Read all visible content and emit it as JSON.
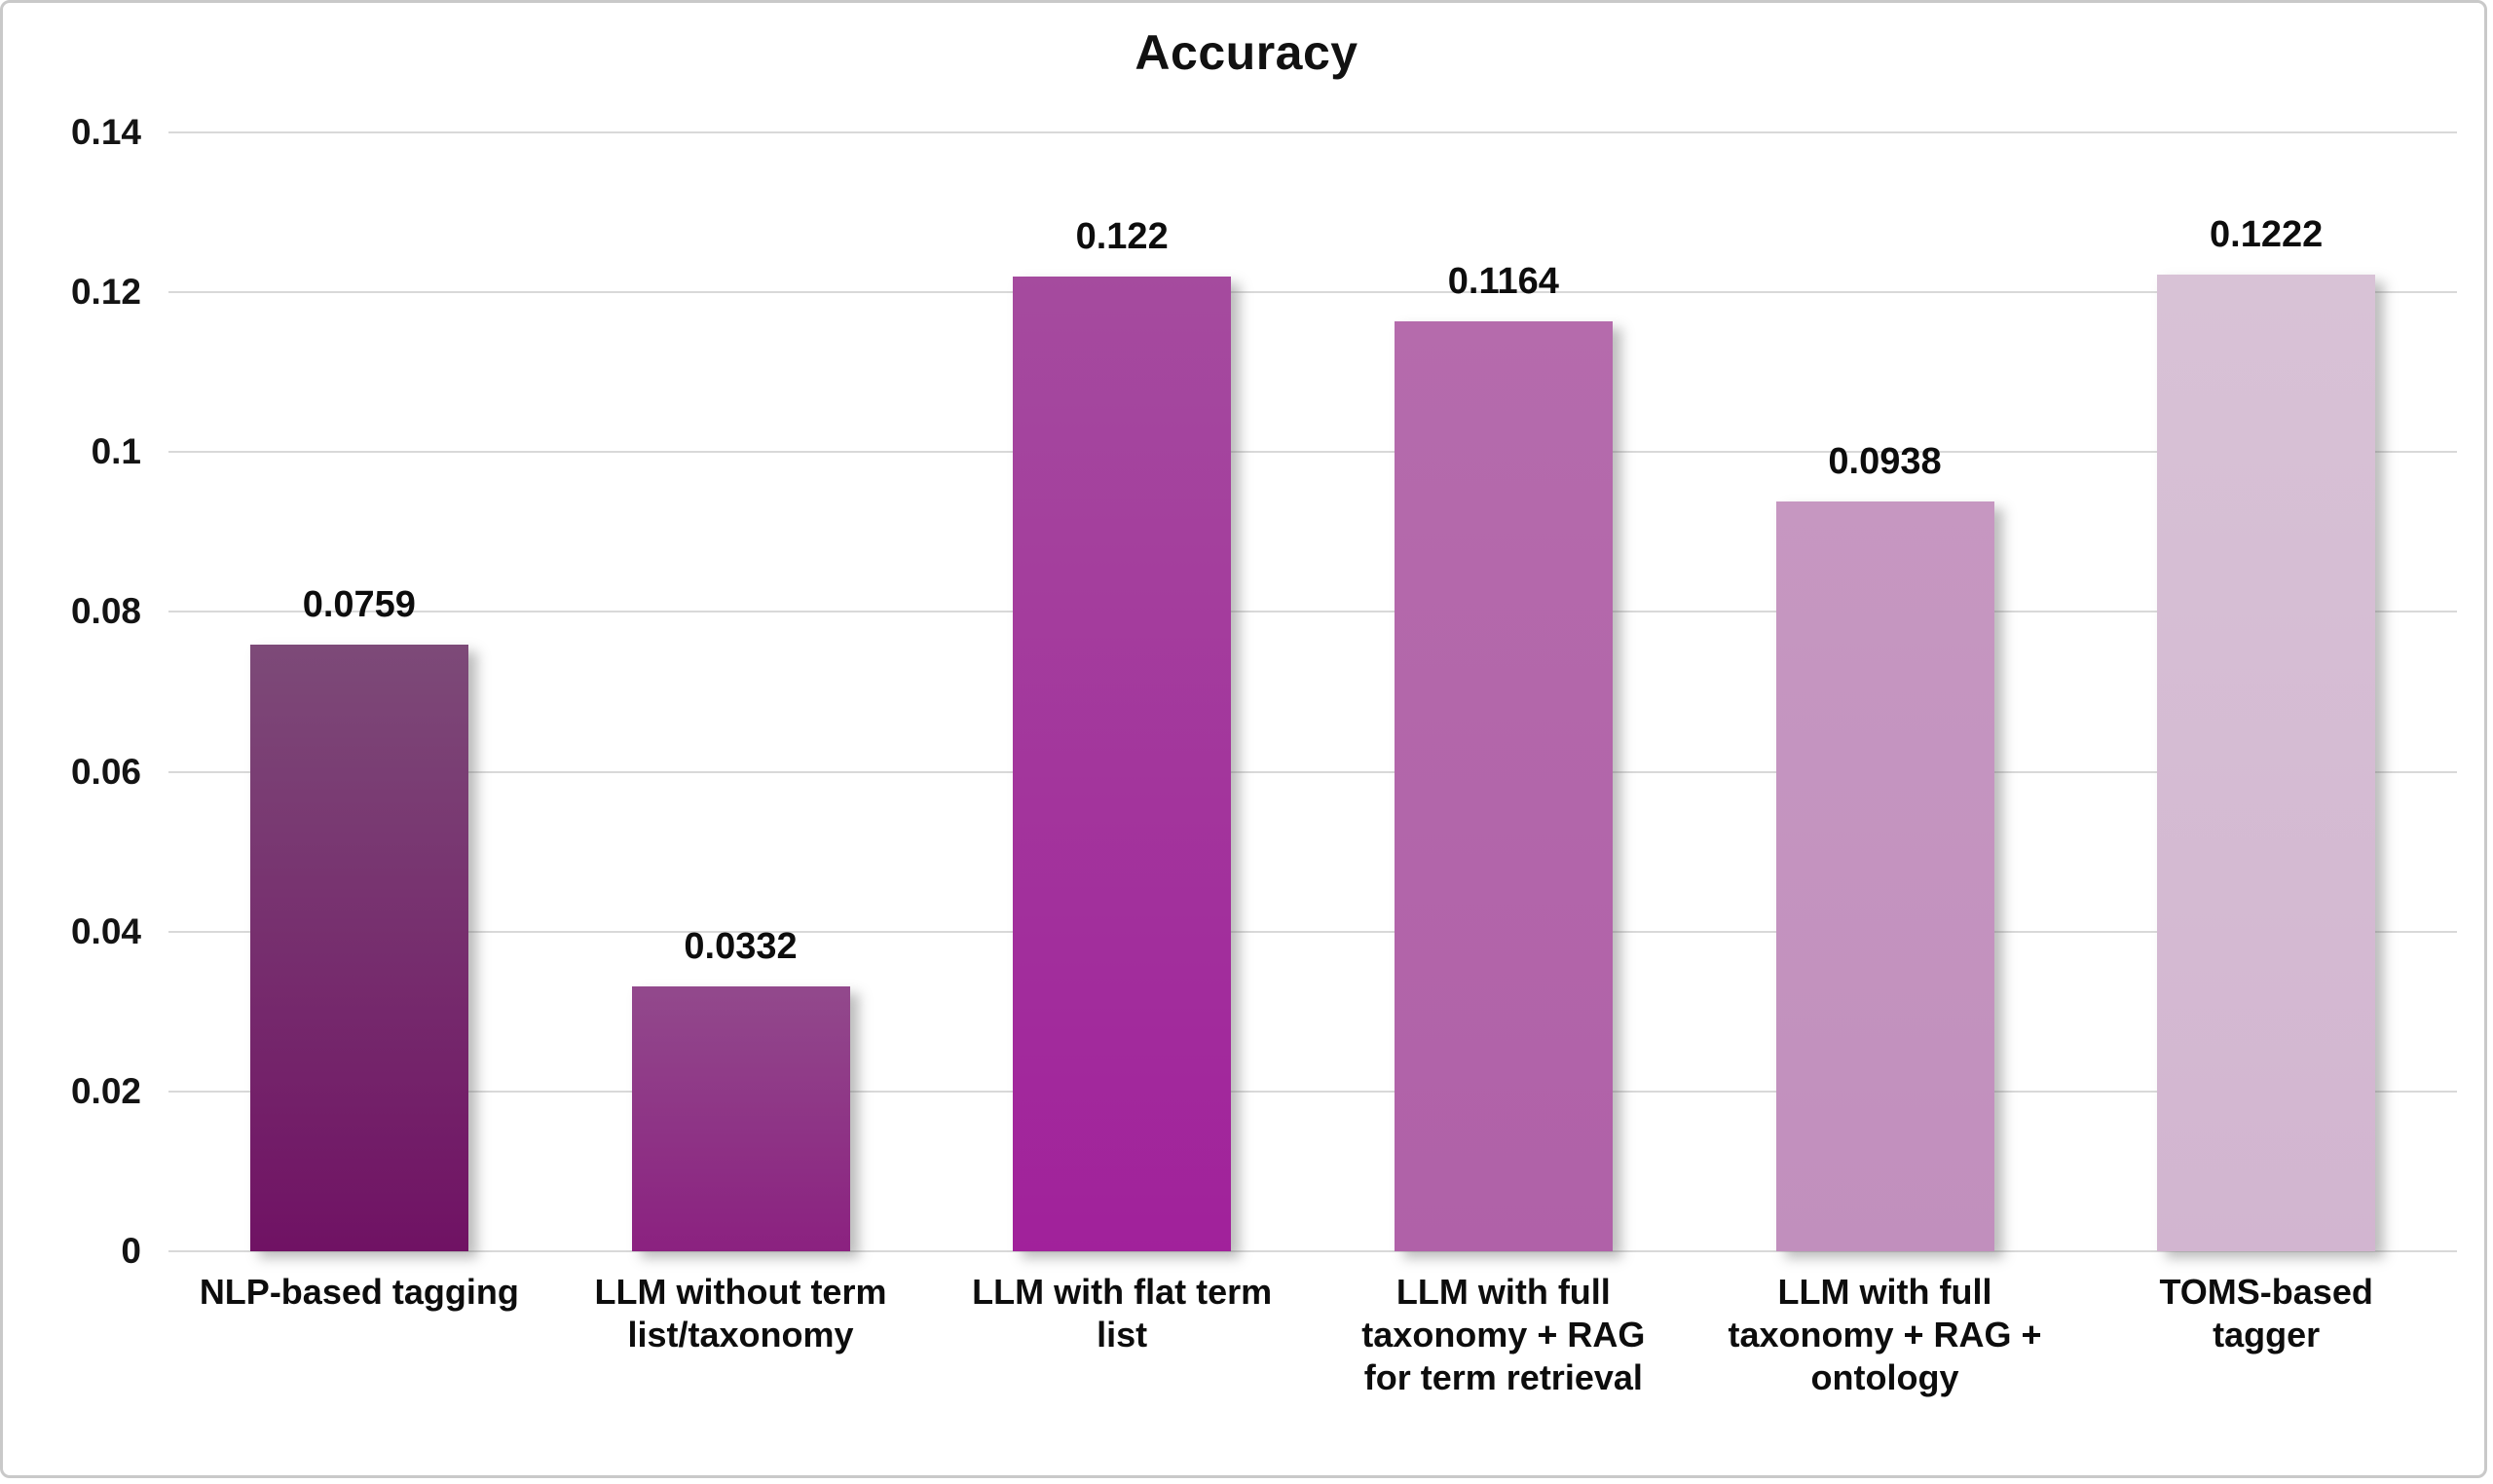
{
  "chart_data": {
    "type": "bar",
    "title": "Accuracy",
    "xlabel": "",
    "ylabel": "",
    "ylim": [
      0,
      0.14
    ],
    "ytick_values": [
      0,
      0.02,
      0.04,
      0.06,
      0.08,
      0.1,
      0.12,
      0.14
    ],
    "ytick_labels": [
      "0",
      "0.02",
      "0.04",
      "0.06",
      "0.08",
      "0.1",
      "0.12",
      "0.14"
    ],
    "grid": "horizontal",
    "legend": "none",
    "gridline_color": "#d9d9d9",
    "categories": [
      "NLP-based tagging",
      "LLM without term list/taxonomy",
      "LLM with flat term list",
      "LLM with full taxonomy + RAG for term retrieval",
      "LLM with full taxonomy + RAG + ontology",
      "TOMS-based tagger"
    ],
    "values": [
      0.0759,
      0.0332,
      0.122,
      0.1164,
      0.0938,
      0.1222
    ],
    "bars": [
      {
        "category": "NLP-based tagging",
        "category_wrapped": "NLP-based tagging",
        "value": 0.0759,
        "value_label": "0.0759",
        "color_top": "#7d4a78",
        "color_bottom": "#701264"
      },
      {
        "category": "LLM without term list/taxonomy",
        "category_wrapped": "LLM without term\nlist/taxonomy",
        "value": 0.0332,
        "value_label": "0.0332",
        "color_top": "#92498c",
        "color_bottom": "#8b2180"
      },
      {
        "category": "LLM with flat term list",
        "category_wrapped": "LLM with flat term\nlist",
        "value": 0.122,
        "value_label": "0.122",
        "color_top": "#a54b9e",
        "color_bottom": "#a1219b"
      },
      {
        "category": "LLM with full taxonomy + RAG for term retrieval",
        "category_wrapped": "LLM with full\ntaxonomy + RAG\nfor term retrieval",
        "value": 0.1164,
        "value_label": "0.1164",
        "color_top": "#b56bac",
        "color_bottom": "#b061a8"
      },
      {
        "category": "LLM with full taxonomy + RAG + ontology",
        "category_wrapped": "LLM with full\ntaxonomy + RAG +\nontology",
        "value": 0.0938,
        "value_label": "0.0938",
        "color_top": "#c697c1",
        "color_bottom": "#c18fbd"
      },
      {
        "category": "TOMS-based tagger",
        "category_wrapped": "TOMS-based\ntagger",
        "value": 0.1222,
        "value_label": "0.1222",
        "color_top": "#d8c2d6",
        "color_bottom": "#d2b5d0"
      }
    ]
  }
}
